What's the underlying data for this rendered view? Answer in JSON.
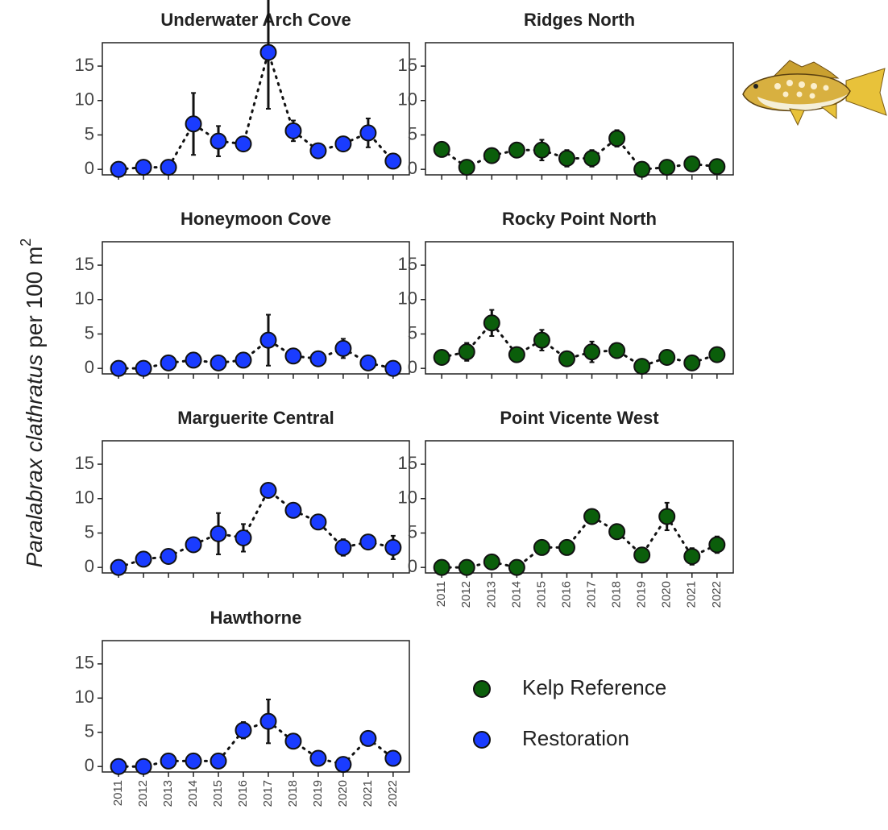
{
  "categories": [
    "2011",
    "2012",
    "2013",
    "2014",
    "2015",
    "2016",
    "2017",
    "2018",
    "2019",
    "2020",
    "2021",
    "2022"
  ],
  "y_label": {
    "species": "Paralabrax clathratus",
    "unit": "per 100 m",
    "superscript": "2"
  },
  "legend": [
    {
      "name": "Kelp Reference",
      "color": "#0b5e0b"
    },
    {
      "name": "Restoration",
      "color": "#1a3cff"
    }
  ],
  "chart_data": [
    {
      "type": "line",
      "title": "Underwater Arch Cove",
      "color": "#1a3cff",
      "ylim": [
        -0.8,
        18.4
      ],
      "yticks": [
        0,
        5,
        10,
        15
      ],
      "values": [
        0,
        0.3,
        0.3,
        6.6,
        4.1,
        3.7,
        17,
        5.6,
        2.7,
        3.7,
        5.3,
        1.2
      ],
      "errors": [
        0,
        0,
        0,
        4.5,
        2.2,
        0,
        8.2,
        1.5,
        0,
        0,
        2.1,
        0
      ]
    },
    {
      "type": "line",
      "title": "Ridges North",
      "color": "#0b5e0b",
      "ylim": [
        -0.8,
        18.4
      ],
      "yticks": [
        0,
        5,
        10,
        15
      ],
      "values": [
        2.9,
        0.3,
        2.0,
        2.8,
        2.8,
        1.6,
        1.6,
        4.5,
        0,
        0.3,
        0.8,
        0.4
      ],
      "errors": [
        0,
        0,
        0,
        0,
        1.5,
        1.2,
        1.2,
        1.2,
        0,
        0,
        0,
        0
      ]
    },
    {
      "type": "line",
      "title": "Honeymoon Cove",
      "color": "#1a3cff",
      "ylim": [
        -0.8,
        18.4
      ],
      "yticks": [
        0,
        5,
        10,
        15
      ],
      "values": [
        0,
        0,
        0.8,
        1.2,
        0.8,
        1.2,
        4.1,
        1.8,
        1.4,
        2.9,
        0.8,
        0
      ],
      "errors": [
        0,
        0,
        0,
        0,
        0,
        0,
        3.7,
        0,
        0,
        1.4,
        0,
        0
      ]
    },
    {
      "type": "line",
      "title": "Rocky Point North",
      "color": "#0b5e0b",
      "ylim": [
        -0.8,
        18.4
      ],
      "yticks": [
        0,
        5,
        10,
        15
      ],
      "values": [
        1.6,
        2.4,
        6.6,
        2.0,
        4.1,
        1.4,
        2.4,
        2.6,
        0.3,
        1.6,
        0.8,
        2.0
      ],
      "errors": [
        0,
        1.3,
        1.9,
        0,
        1.5,
        0,
        1.5,
        0,
        0,
        0,
        0,
        0
      ]
    },
    {
      "type": "line",
      "title": "Marguerite Central",
      "color": "#1a3cff",
      "ylim": [
        -0.8,
        18.4
      ],
      "yticks": [
        0,
        5,
        10,
        15
      ],
      "values": [
        0,
        1.2,
        1.6,
        3.3,
        4.9,
        4.3,
        11.2,
        8.3,
        6.6,
        2.9,
        3.7,
        2.9
      ],
      "errors": [
        0,
        1.0,
        1.0,
        0,
        3.0,
        2.0,
        0,
        0,
        0,
        1.2,
        0,
        1.7
      ]
    },
    {
      "type": "line",
      "title": "Point Vicente West",
      "color": "#0b5e0b",
      "ylim": [
        -0.8,
        18.4
      ],
      "yticks": [
        0,
        5,
        10,
        15
      ],
      "values": [
        0,
        0,
        0.8,
        0,
        2.9,
        2.9,
        7.4,
        5.2,
        1.8,
        7.4,
        1.6,
        3.3
      ],
      "errors": [
        0,
        0,
        0,
        0,
        0,
        0,
        0.8,
        0.9,
        0,
        2.0,
        1.2,
        1.2
      ]
    },
    {
      "type": "line",
      "title": "Hawthorne",
      "color": "#1a3cff",
      "ylim": [
        -0.8,
        18.4
      ],
      "yticks": [
        0,
        5,
        10,
        15
      ],
      "values": [
        0,
        0,
        0.8,
        0.8,
        0.8,
        5.3,
        6.6,
        3.7,
        1.2,
        0.3,
        4.1,
        1.2
      ],
      "errors": [
        0,
        0,
        0,
        0,
        0,
        1.2,
        3.2,
        0,
        0,
        0,
        0,
        0
      ]
    }
  ]
}
